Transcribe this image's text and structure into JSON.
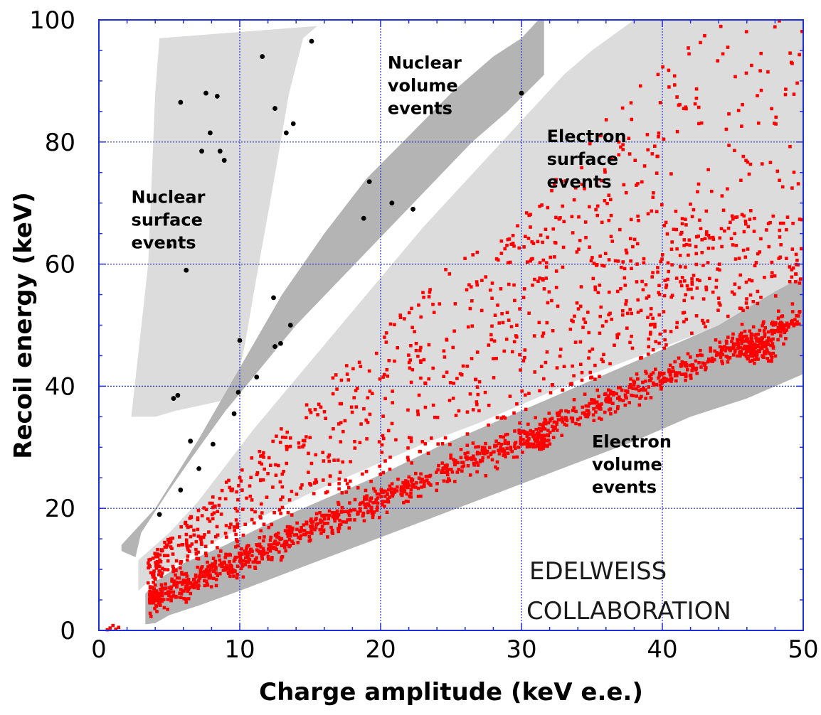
{
  "chart_data": {
    "type": "scatter",
    "xlabel": "Charge amplitude (keV e.e.)",
    "ylabel": "Recoil energy (keV)",
    "xlim": [
      0,
      50
    ],
    "ylim": [
      0,
      100
    ],
    "x_ticks": [
      "0",
      "10",
      "20",
      "30",
      "40",
      "50"
    ],
    "y_ticks": [
      "0",
      "20",
      "40",
      "60",
      "80",
      "100"
    ],
    "grid": true,
    "grid_color": "#1f2fd6",
    "colors": {
      "light_band": "#dcdcdc",
      "dark_band": "#b4b4b4",
      "electron_events": "#ff0000",
      "nuclear_events": "#000000"
    },
    "regions": [
      {
        "label": [
          "Nuclear",
          "surface",
          "events"
        ],
        "shade": "light",
        "polygon": [
          [
            2.3,
            35
          ],
          [
            3.5,
            60
          ],
          [
            4,
            88
          ],
          [
            4.3,
            97
          ],
          [
            15.5,
            99
          ],
          [
            14.5,
            97
          ],
          [
            13.5,
            88
          ],
          [
            12.3,
            72
          ],
          [
            11.2,
            58
          ],
          [
            10.3,
            46
          ],
          [
            9.5,
            38
          ],
          [
            7.5,
            37
          ],
          [
            5.5,
            36
          ],
          [
            4,
            35
          ]
        ]
      },
      {
        "label": [
          "Nuclear",
          "volume",
          "events"
        ],
        "shade": "dark",
        "polygon": [
          [
            1.6,
            14
          ],
          [
            4,
            20
          ],
          [
            7,
            31
          ],
          [
            10,
            43
          ],
          [
            13,
            55
          ],
          [
            16,
            65
          ],
          [
            19,
            74
          ],
          [
            22,
            81
          ],
          [
            25,
            88
          ],
          [
            28,
            94
          ],
          [
            30,
            97
          ],
          [
            31.2,
            100
          ],
          [
            31.6,
            100
          ],
          [
            31.6,
            91
          ],
          [
            29,
            85
          ],
          [
            26.5,
            80
          ],
          [
            24,
            74
          ],
          [
            21.5,
            68
          ],
          [
            19,
            62
          ],
          [
            16.5,
            56
          ],
          [
            14,
            50
          ],
          [
            11.5,
            43
          ],
          [
            9,
            36
          ],
          [
            6.5,
            28
          ],
          [
            5,
            23
          ],
          [
            3,
            16
          ],
          [
            2.6,
            12
          ],
          [
            1.6,
            13
          ]
        ]
      },
      {
        "label": [
          "Electron",
          "surface",
          "events"
        ],
        "shade": "light",
        "polygon": [
          [
            2.8,
            11.5
          ],
          [
            5,
            16
          ],
          [
            7,
            21
          ],
          [
            9,
            27
          ],
          [
            11,
            33
          ],
          [
            13,
            38.5
          ],
          [
            15,
            44
          ],
          [
            17,
            49.5
          ],
          [
            19,
            55
          ],
          [
            21,
            60.5
          ],
          [
            23,
            66
          ],
          [
            25,
            71
          ],
          [
            27,
            76
          ],
          [
            29,
            81
          ],
          [
            31,
            86
          ],
          [
            33,
            91
          ],
          [
            35,
            95
          ],
          [
            38,
            100
          ],
          [
            50,
            100
          ],
          [
            50,
            58
          ],
          [
            47,
            53
          ],
          [
            43,
            49
          ],
          [
            39,
            45.5
          ],
          [
            35,
            42
          ],
          [
            31,
            38
          ],
          [
            27,
            34
          ],
          [
            23,
            30.5
          ],
          [
            19,
            26.5
          ],
          [
            15,
            22.5
          ],
          [
            11,
            18
          ],
          [
            7,
            13
          ],
          [
            4,
            9
          ],
          [
            2.8,
            6.5
          ]
        ]
      },
      {
        "label": [
          "Electron",
          "volume",
          "events"
        ],
        "shade": "dark",
        "polygon": [
          [
            3.3,
            1
          ],
          [
            3.3,
            6
          ],
          [
            4,
            8
          ],
          [
            6,
            11
          ],
          [
            9,
            14
          ],
          [
            12,
            17.5
          ],
          [
            16,
            21.5
          ],
          [
            20,
            25.5
          ],
          [
            24,
            30
          ],
          [
            28,
            34
          ],
          [
            32,
            38
          ],
          [
            36,
            42
          ],
          [
            40,
            46
          ],
          [
            44,
            50
          ],
          [
            48,
            55.5
          ],
          [
            50,
            58
          ],
          [
            50,
            42
          ],
          [
            46,
            38
          ],
          [
            42,
            35
          ],
          [
            38,
            31
          ],
          [
            34,
            27.5
          ],
          [
            30,
            24
          ],
          [
            26,
            20.5
          ],
          [
            22,
            17
          ],
          [
            18,
            13.5
          ],
          [
            14,
            10
          ],
          [
            10,
            6.5
          ],
          [
            7,
            4
          ],
          [
            5,
            2.5
          ],
          [
            4,
            1.2
          ]
        ]
      }
    ],
    "collaboration_label": [
      "EDELWEISS",
      "COLLABORATION"
    ],
    "series": [
      {
        "marker": "black",
        "points": [
          [
            4.3,
            19
          ],
          [
            5,
            63
          ],
          [
            5.3,
            38
          ],
          [
            5.6,
            38.5
          ],
          [
            5.8,
            23
          ],
          [
            5.8,
            86.5
          ],
          [
            6.2,
            59
          ],
          [
            6.5,
            31
          ],
          [
            7.1,
            26.5
          ],
          [
            7.3,
            78.5
          ],
          [
            7.6,
            88
          ],
          [
            7.9,
            81.5
          ],
          [
            8.1,
            30.5
          ],
          [
            8.4,
            87.5
          ],
          [
            8.6,
            78.5
          ],
          [
            8.9,
            77
          ],
          [
            9.6,
            35.5
          ],
          [
            9.9,
            39
          ],
          [
            10,
            47.5
          ],
          [
            11.2,
            41.5
          ],
          [
            11.6,
            94
          ],
          [
            12.4,
            54.5
          ],
          [
            12.5,
            46.5
          ],
          [
            12.5,
            85.5
          ],
          [
            12.9,
            47
          ],
          [
            13.3,
            81.5
          ],
          [
            13.6,
            50
          ],
          [
            13.8,
            83
          ],
          [
            15.1,
            96.5
          ],
          [
            18.8,
            67.5
          ],
          [
            19.2,
            73.5
          ],
          [
            20.8,
            70
          ],
          [
            22.3,
            69
          ],
          [
            30,
            88
          ]
        ]
      }
    ]
  }
}
